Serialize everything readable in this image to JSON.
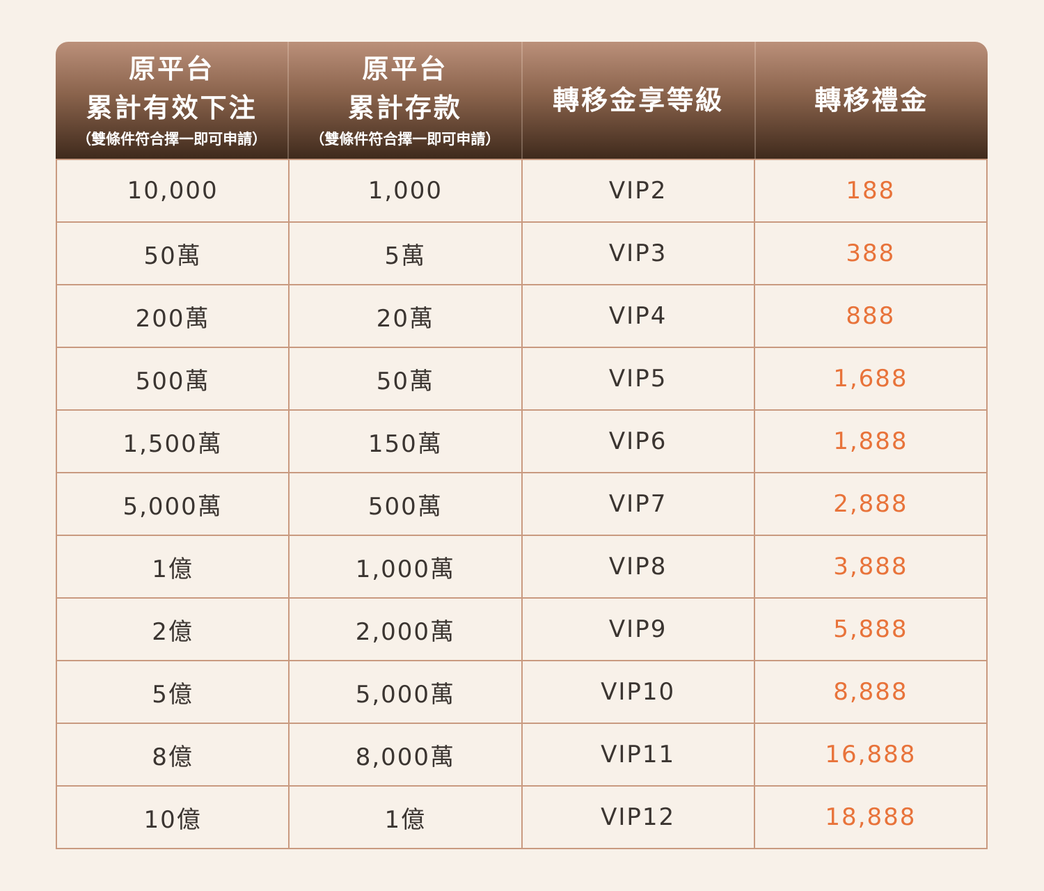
{
  "header": {
    "col1": {
      "line1": "原平台",
      "line2": "累計有效下注",
      "note": "（雙條件符合擇一即可申請）"
    },
    "col2": {
      "line1": "原平台",
      "line2": "累計存款",
      "note": "（雙條件符合擇一即可申請）"
    },
    "col3": {
      "line1": "轉移金享等級"
    },
    "col4": {
      "line1": "轉移禮金"
    }
  },
  "colors": {
    "gift_text": "#e8733a",
    "border": "#c99a80",
    "background": "#f8f1e9"
  },
  "rows": [
    {
      "bet": "10,000",
      "deposit": "1,000",
      "level": "VIP2",
      "gift": "188"
    },
    {
      "bet": "50萬",
      "deposit": "5萬",
      "level": "VIP3",
      "gift": "388"
    },
    {
      "bet": "200萬",
      "deposit": "20萬",
      "level": "VIP4",
      "gift": "888"
    },
    {
      "bet": "500萬",
      "deposit": "50萬",
      "level": "VIP5",
      "gift": "1,688"
    },
    {
      "bet": "1,500萬",
      "deposit": "150萬",
      "level": "VIP6",
      "gift": "1,888"
    },
    {
      "bet": "5,000萬",
      "deposit": "500萬",
      "level": "VIP7",
      "gift": "2,888"
    },
    {
      "bet": "1億",
      "deposit": "1,000萬",
      "level": "VIP8",
      "gift": "3,888"
    },
    {
      "bet": "2億",
      "deposit": "2,000萬",
      "level": "VIP9",
      "gift": "5,888"
    },
    {
      "bet": "5億",
      "deposit": "5,000萬",
      "level": "VIP10",
      "gift": "8,888"
    },
    {
      "bet": "8億",
      "deposit": "8,000萬",
      "level": "VIP11",
      "gift": "16,888"
    },
    {
      "bet": "10億",
      "deposit": "1億",
      "level": "VIP12",
      "gift": "18,888"
    }
  ]
}
